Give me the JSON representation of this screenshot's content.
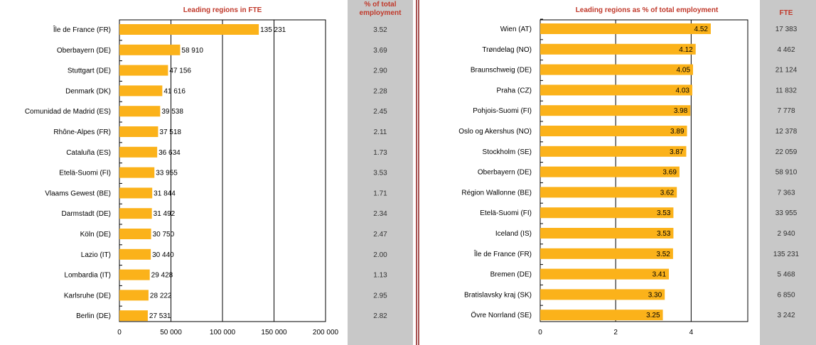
{
  "colors": {
    "bar": "#fbb21a",
    "title": "#c0392b",
    "side_panel": "#c8c8c8",
    "divider": "#8b1a1a",
    "grid": "#000000"
  },
  "chart_data": [
    {
      "type": "bar",
      "orientation": "horizontal",
      "title": "Leading regions in FTE",
      "categories": [
        "Île de France (FR)",
        "Oberbayern (DE)",
        "Stuttgart (DE)",
        "Denmark (DK)",
        "Comunidad de Madrid (ES)",
        "Rhône-Alpes (FR)",
        "Cataluña (ES)",
        "Etelä-Suomi (FI)",
        "Vlaams Gewest (BE)",
        "Darmstadt (DE)",
        "Köln (DE)",
        "Lazio (IT)",
        "Lombardia (IT)",
        "Karlsruhe (DE)",
        "Berlin (DE)"
      ],
      "values": [
        135231,
        58910,
        47156,
        41616,
        39538,
        37518,
        36634,
        33955,
        31844,
        31492,
        30750,
        30440,
        29428,
        28222,
        27531
      ],
      "value_labels": [
        "135 231",
        "58 910",
        "47 156",
        "41 616",
        "39 538",
        "37 518",
        "36 634",
        "33 955",
        "31 844",
        "31 492",
        "30 750",
        "30 440",
        "29 428",
        "28 222",
        "27 531"
      ],
      "xlim": [
        0,
        200000
      ],
      "xticks": [
        0,
        50000,
        100000,
        150000,
        200000
      ],
      "xtick_labels": [
        "0",
        "50 000",
        "100 000",
        "150 000",
        "200 000"
      ],
      "label_position": "outside",
      "grid": true,
      "side_column": {
        "header": [
          "% of total",
          "employment"
        ],
        "values": [
          "3.52",
          "3.69",
          "2.90",
          "2.28",
          "2.45",
          "2.11",
          "1.73",
          "3.53",
          "1.71",
          "2.34",
          "2.47",
          "2.00",
          "1.13",
          "2.95",
          "2.82"
        ]
      }
    },
    {
      "type": "bar",
      "orientation": "horizontal",
      "title": "Leading regions as % of total employment",
      "categories": [
        "Wien (AT)",
        "Trøndelag (NO)",
        "Braunschweig (DE)",
        "Praha (CZ)",
        "Pohjois-Suomi (FI)",
        "Oslo og Akershus (NO)",
        "Stockholm (SE)",
        "Oberbayern (DE)",
        "Région Wallonne (BE)",
        "Etelä-Suomi (FI)",
        "Iceland (IS)",
        "Île de France (FR)",
        "Bremen (DE)",
        "Bratislavsky kraj (SK)",
        "Övre Norrland (SE)"
      ],
      "values": [
        4.52,
        4.12,
        4.05,
        4.03,
        3.98,
        3.89,
        3.87,
        3.69,
        3.62,
        3.53,
        3.53,
        3.52,
        3.41,
        3.3,
        3.25
      ],
      "value_labels": [
        "4.52",
        "4.12",
        "4.05",
        "4.03",
        "3.98",
        "3.89",
        "3.87",
        "3.69",
        "3.62",
        "3.53",
        "3.53",
        "3.52",
        "3.41",
        "3.30",
        "3.25"
      ],
      "xlim": [
        0,
        5.5
      ],
      "xticks": [
        0,
        2,
        4
      ],
      "xtick_labels": [
        "0",
        "2",
        "4"
      ],
      "label_position": "inside",
      "grid": true,
      "side_column": {
        "header": [
          "FTE"
        ],
        "values": [
          "17 383",
          "4 462",
          "21 124",
          "11 832",
          "7 778",
          "12 378",
          "22 059",
          "58 910",
          "7 363",
          "33 955",
          "2 940",
          "135 231",
          "5 468",
          "6 850",
          "3 242"
        ]
      }
    }
  ]
}
